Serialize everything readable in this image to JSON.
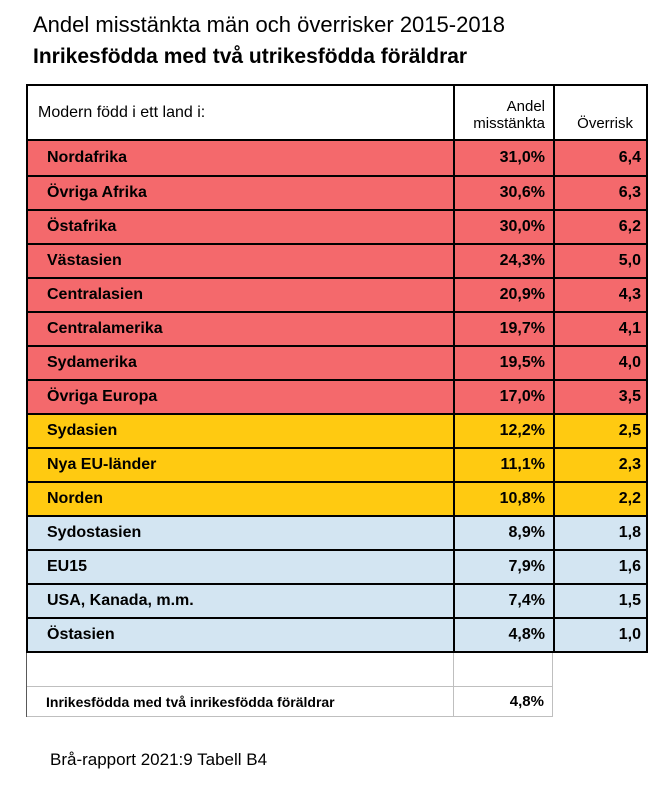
{
  "header": {
    "title": "Andel misstänkta män och överrisker 2015-2018",
    "subtitle": "Inrikesfödda med två utrikesfödda föräldrar"
  },
  "table": {
    "columns": {
      "region": "Modern född i ett land i:",
      "share": "Andel misstänkta",
      "overrisk": "Överrisk"
    },
    "rows": [
      {
        "region": "Nordafrika",
        "share": "31,0%",
        "overrisk": "6,4",
        "group": "red"
      },
      {
        "region": "Övriga Afrika",
        "share": "30,6%",
        "overrisk": "6,3",
        "group": "red"
      },
      {
        "region": "Östafrika",
        "share": "30,0%",
        "overrisk": "6,2",
        "group": "red"
      },
      {
        "region": "Västasien",
        "share": "24,3%",
        "overrisk": "5,0",
        "group": "red"
      },
      {
        "region": "Centralasien",
        "share": "20,9%",
        "overrisk": "4,3",
        "group": "red"
      },
      {
        "region": "Centralamerika",
        "share": "19,7%",
        "overrisk": "4,1",
        "group": "red"
      },
      {
        "region": "Sydamerika",
        "share": "19,5%",
        "overrisk": "4,0",
        "group": "red"
      },
      {
        "region": "Övriga Europa",
        "share": "17,0%",
        "overrisk": "3,5",
        "group": "red"
      },
      {
        "region": "Sydasien",
        "share": "12,2%",
        "overrisk": "2,5",
        "group": "yellow"
      },
      {
        "region": "Nya EU-länder",
        "share": "11,1%",
        "overrisk": "2,3",
        "group": "yellow"
      },
      {
        "region": "Norden",
        "share": "10,8%",
        "overrisk": "2,2",
        "group": "yellow"
      },
      {
        "region": "Sydostasien",
        "share": "8,9%",
        "overrisk": "1,8",
        "group": "blue"
      },
      {
        "region": "EU15",
        "share": "7,9%",
        "overrisk": "1,6",
        "group": "blue"
      },
      {
        "region": "USA, Kanada, m.m.",
        "share": "7,4%",
        "overrisk": "1,5",
        "group": "blue"
      },
      {
        "region": "Östasien",
        "share": "4,8%",
        "overrisk": "1,0",
        "group": "blue"
      }
    ],
    "comparison": {
      "label": "Inrikesfödda med två inrikesfödda föräldrar",
      "share": "4,8%"
    }
  },
  "footer": {
    "source": "Brå-rapport 2021:9 Tabell B4"
  },
  "colors": {
    "red": "#F4696C",
    "yellow": "#FFCA11",
    "blue": "#D3E5F2",
    "border": "#000000",
    "annex_border": "#BFBFBF"
  },
  "chart_data": {
    "type": "table",
    "title": "Andel misstänkta män och överrisker 2015-2018",
    "subtitle": "Inrikesfödda med två utrikesfödda föräldrar",
    "columns": [
      "Modern född i ett land i:",
      "Andel misstänkta",
      "Överrisk"
    ],
    "rows": [
      [
        "Nordafrika",
        31.0,
        6.4
      ],
      [
        "Övriga Afrika",
        30.6,
        6.3
      ],
      [
        "Östafrika",
        30.0,
        6.2
      ],
      [
        "Västasien",
        24.3,
        5.0
      ],
      [
        "Centralasien",
        20.9,
        4.3
      ],
      [
        "Centralamerika",
        19.7,
        4.1
      ],
      [
        "Sydamerika",
        19.5,
        4.0
      ],
      [
        "Övriga Europa",
        17.0,
        3.5
      ],
      [
        "Sydasien",
        12.2,
        2.5
      ],
      [
        "Nya EU-länder",
        11.1,
        2.3
      ],
      [
        "Norden",
        10.8,
        2.2
      ],
      [
        "Sydostasien",
        8.9,
        1.8
      ],
      [
        "EU15",
        7.9,
        1.6
      ],
      [
        "USA, Kanada, m.m.",
        7.4,
        1.5
      ],
      [
        "Östasien",
        4.8,
        1.0
      ]
    ],
    "row_groups": {
      "red": [
        0,
        1,
        2,
        3,
        4,
        5,
        6,
        7
      ],
      "yellow": [
        8,
        9,
        10
      ],
      "blue": [
        11,
        12,
        13,
        14
      ]
    },
    "comparison_row": {
      "label": "Inrikesfödda med två inrikesfödda föräldrar",
      "share_pct": 4.8
    },
    "units": {
      "share": "percent",
      "overrisk": "ratio"
    },
    "source": "Brå-rapport 2021:9 Tabell B4"
  }
}
